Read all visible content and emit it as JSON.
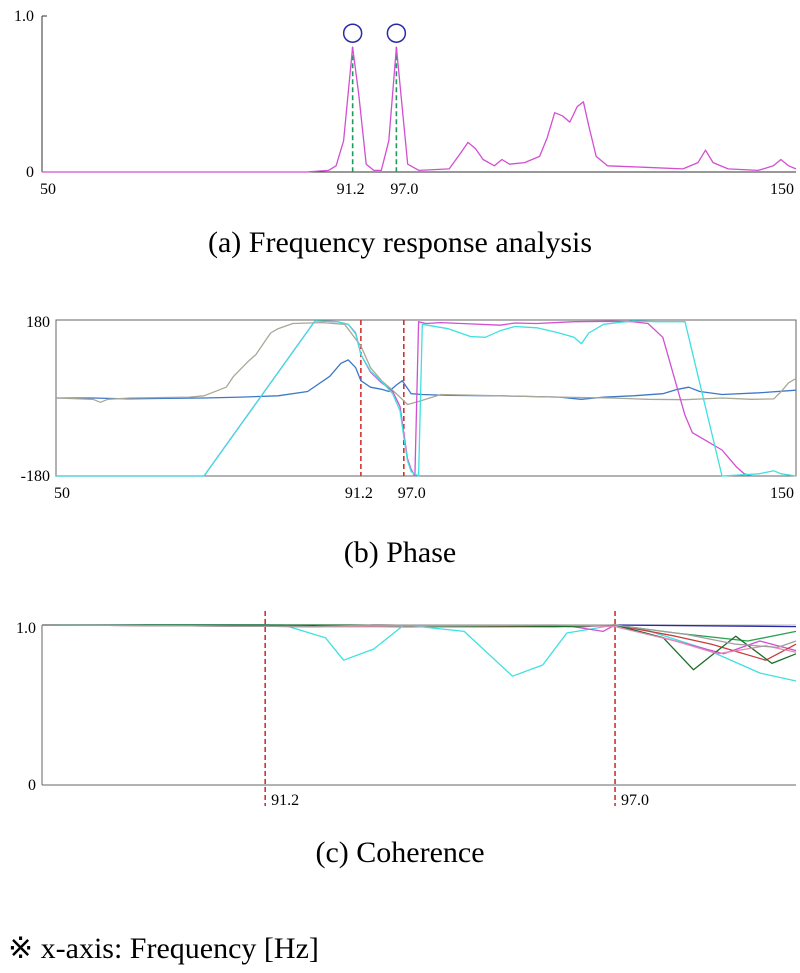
{
  "note": "※ x-axis:  Frequency [Hz]",
  "colors": {
    "magenta": "#d24fd2",
    "blue": "#3d78c8",
    "cyan": "#3ee0e0",
    "olive": "#a8a896",
    "marker_green": "#1e9a5a",
    "marker_red": "#d03232",
    "circle": "#2a2aa8",
    "frame": "#555555"
  },
  "chart_data": [
    {
      "id": "a",
      "type": "line",
      "caption": "(a)  Frequency  response  analysis",
      "xlim": [
        50,
        150
      ],
      "ylim": [
        0,
        1.0
      ],
      "y_tick_labels": [
        "1.0",
        "0"
      ],
      "x_tick_labels": [
        "50",
        "91.2",
        "97.0",
        "150"
      ],
      "markers": [
        91.2,
        97.0
      ],
      "peak_circles": [
        91.2,
        97.0
      ],
      "series": [
        {
          "color": "magenta",
          "points": [
            [
              50,
              0.0
            ],
            [
              85,
              0.0
            ],
            [
              88,
              0.01
            ],
            [
              89,
              0.04
            ],
            [
              90,
              0.2
            ],
            [
              91.2,
              0.8
            ],
            [
              92,
              0.5
            ],
            [
              93,
              0.05
            ],
            [
              94,
              0.01
            ],
            [
              95,
              0.01
            ],
            [
              96,
              0.2
            ],
            [
              97.0,
              0.8
            ],
            [
              97.8,
              0.4
            ],
            [
              98.5,
              0.05
            ],
            [
              100,
              0.01
            ],
            [
              104,
              0.02
            ],
            [
              105.5,
              0.12
            ],
            [
              106.5,
              0.19
            ],
            [
              107.5,
              0.15
            ],
            [
              108.5,
              0.08
            ],
            [
              110,
              0.04
            ],
            [
              111,
              0.08
            ],
            [
              112,
              0.05
            ],
            [
              114,
              0.06
            ],
            [
              116,
              0.1
            ],
            [
              117,
              0.22
            ],
            [
              118,
              0.38
            ],
            [
              119,
              0.36
            ],
            [
              120,
              0.32
            ],
            [
              121,
              0.42
            ],
            [
              121.8,
              0.45
            ],
            [
              122.5,
              0.3
            ],
            [
              123.5,
              0.1
            ],
            [
              125,
              0.04
            ],
            [
              130,
              0.03
            ],
            [
              135,
              0.02
            ],
            [
              137,
              0.06
            ],
            [
              138,
              0.14
            ],
            [
              139,
              0.06
            ],
            [
              141,
              0.02
            ],
            [
              145,
              0.01
            ],
            [
              147,
              0.04
            ],
            [
              148,
              0.08
            ],
            [
              149,
              0.04
            ],
            [
              150,
              0.02
            ]
          ]
        }
      ]
    },
    {
      "id": "b",
      "type": "line",
      "caption": "(b)  Phase",
      "xlim": [
        50,
        150
      ],
      "ylim": [
        -180,
        180
      ],
      "y_tick_labels": [
        "180",
        "-180"
      ],
      "x_tick_labels": [
        "50",
        "91.2",
        "97.0",
        "150"
      ],
      "markers": [
        91.2,
        97.0
      ],
      "series": [
        {
          "color": "blue",
          "points": [
            [
              50,
              0
            ],
            [
              55,
              0
            ],
            [
              60,
              -2
            ],
            [
              65,
              -1
            ],
            [
              70,
              0
            ],
            [
              75,
              2
            ],
            [
              80,
              5
            ],
            [
              84,
              15
            ],
            [
              87,
              50
            ],
            [
              88.5,
              80
            ],
            [
              89.5,
              88
            ],
            [
              90.5,
              70
            ],
            [
              91.2,
              40
            ],
            [
              92.5,
              25
            ],
            [
              94,
              20
            ],
            [
              95,
              15
            ],
            [
              96,
              30
            ],
            [
              96.8,
              40
            ],
            [
              98,
              10
            ],
            [
              99.5,
              8
            ],
            [
              103,
              6
            ],
            [
              110,
              5
            ],
            [
              118,
              2
            ],
            [
              121,
              -3
            ],
            [
              124,
              2
            ],
            [
              128,
              5
            ],
            [
              132,
              10
            ],
            [
              134,
              20
            ],
            [
              135.5,
              25
            ],
            [
              137,
              15
            ],
            [
              140,
              8
            ],
            [
              145,
              12
            ],
            [
              150,
              18
            ]
          ]
        },
        {
          "color": "olive",
          "points": [
            [
              50,
              0
            ],
            [
              55,
              -3
            ],
            [
              56,
              -10
            ],
            [
              57,
              -3
            ],
            [
              60,
              0
            ],
            [
              68,
              2
            ],
            [
              70,
              5
            ],
            [
              73,
              25
            ],
            [
              74,
              50
            ],
            [
              76,
              85
            ],
            [
              77,
              100
            ],
            [
              79,
              150
            ],
            [
              80,
              160
            ],
            [
              82,
              172
            ],
            [
              86,
              174
            ],
            [
              89,
              170
            ],
            [
              91.2,
              120
            ],
            [
              92.5,
              70
            ],
            [
              94,
              40
            ],
            [
              96,
              10
            ],
            [
              97.5,
              -15
            ],
            [
              99,
              -8
            ],
            [
              102,
              8
            ],
            [
              110,
              5
            ],
            [
              118,
              2
            ],
            [
              125,
              0
            ],
            [
              130,
              -3
            ],
            [
              135,
              -4
            ],
            [
              140,
              0
            ],
            [
              144,
              -3
            ],
            [
              147,
              -2
            ],
            [
              148,
              15
            ],
            [
              149,
              35
            ],
            [
              150,
              45
            ]
          ]
        },
        {
          "color": "magenta",
          "points": [
            [
              50,
              -180
            ],
            [
              70,
              -180
            ],
            [
              85,
              178
            ],
            [
              88,
              176
            ],
            [
              89.5,
              170
            ],
            [
              90.5,
              150
            ],
            [
              91.2,
              100
            ],
            [
              92.5,
              60
            ],
            [
              94,
              35
            ],
            [
              95.5,
              15
            ],
            [
              96.5,
              -20
            ],
            [
              97.0,
              -80
            ],
            [
              97.5,
              -140
            ],
            [
              98,
              -165
            ],
            [
              98.5,
              -180
            ],
            [
              99,
              176
            ],
            [
              100,
              172
            ],
            [
              102,
              174
            ],
            [
              106,
              171
            ],
            [
              110,
              168
            ],
            [
              112,
              173
            ],
            [
              115,
              172
            ],
            [
              120,
              176
            ],
            [
              125,
              177
            ],
            [
              128,
              176
            ],
            [
              130,
              172
            ],
            [
              132,
              140
            ],
            [
              133,
              80
            ],
            [
              134,
              20
            ],
            [
              135,
              -40
            ],
            [
              136,
              -80
            ],
            [
              138,
              -100
            ],
            [
              140,
              -120
            ],
            [
              141,
              -140
            ],
            [
              142,
              -160
            ],
            [
              143,
              -175
            ],
            [
              144,
              -180
            ]
          ]
        },
        {
          "color": "cyan",
          "points": [
            [
              50,
              -180
            ],
            [
              70,
              -180
            ],
            [
              85,
              178
            ],
            [
              88,
              176
            ],
            [
              89.5,
              170
            ],
            [
              90.5,
              148
            ],
            [
              91.2,
              100
            ],
            [
              92.5,
              62
            ],
            [
              94,
              38
            ],
            [
              95.5,
              10
            ],
            [
              96.5,
              -30
            ],
            [
              97.0,
              -90
            ],
            [
              97.5,
              -145
            ],
            [
              98,
              -170
            ],
            [
              99,
              -180
            ],
            [
              99.5,
              170
            ],
            [
              103,
              160
            ],
            [
              106,
              142
            ],
            [
              108,
              140
            ],
            [
              110,
              155
            ],
            [
              112,
              165
            ],
            [
              115,
              162
            ],
            [
              118,
              150
            ],
            [
              120,
              140
            ],
            [
              121,
              125
            ],
            [
              122,
              150
            ],
            [
              124,
              170
            ],
            [
              128,
              178
            ],
            [
              131,
              176
            ],
            [
              135,
              176
            ],
            [
              140,
              -180
            ],
            [
              145,
              -175
            ],
            [
              147,
              -168
            ],
            [
              148,
              -175
            ],
            [
              150,
              -180
            ]
          ]
        }
      ]
    },
    {
      "id": "c",
      "type": "line",
      "caption": "(c)  Coherence",
      "xlim": [
        87.5,
        100
      ],
      "ylim": [
        0,
        1.0
      ],
      "y_tick_labels": [
        "1.0",
        "0"
      ],
      "x_tick_labels": [
        "91.2",
        "97.0"
      ],
      "markers": [
        91.2,
        97.0
      ],
      "series": [
        {
          "color": "#2a2aa8",
          "points": [
            [
              87.5,
              1.0
            ],
            [
              91.2,
              1.0
            ],
            [
              93.5,
              0.99
            ],
            [
              96,
              0.99
            ],
            [
              97,
              1.0
            ],
            [
              100,
              0.99
            ]
          ]
        },
        {
          "color": "#2aa050",
          "points": [
            [
              87.5,
              1.0
            ],
            [
              91.2,
              1.0
            ],
            [
              92,
              0.99
            ],
            [
              93,
              0.99
            ],
            [
              94,
              0.99
            ],
            [
              95,
              0.99
            ],
            [
              97,
              1.0
            ],
            [
              98,
              0.95
            ],
            [
              99.2,
              0.9
            ],
            [
              100,
              0.96
            ]
          ]
        },
        {
          "color": "#3ee0e0",
          "points": [
            [
              87.5,
              1.0
            ],
            [
              91.5,
              1.0
            ],
            [
              92.2,
              0.92
            ],
            [
              92.5,
              0.78
            ],
            [
              93,
              0.85
            ],
            [
              93.5,
              1.0
            ],
            [
              94.5,
              0.96
            ],
            [
              95.3,
              0.68
            ],
            [
              95.8,
              0.75
            ],
            [
              96.2,
              0.95
            ],
            [
              97,
              1.0
            ],
            [
              97.5,
              0.97
            ],
            [
              98.5,
              0.85
            ],
            [
              99.4,
              0.7
            ],
            [
              100,
              0.65
            ]
          ]
        },
        {
          "color": "#d24fd2",
          "points": [
            [
              87.5,
              1.0
            ],
            [
              92,
              0.99
            ],
            [
              93,
              1.0
            ],
            [
              96.3,
              0.99
            ],
            [
              96.8,
              0.96
            ],
            [
              97,
              1.0
            ],
            [
              98,
              0.9
            ],
            [
              98.8,
              0.82
            ],
            [
              99.4,
              0.9
            ],
            [
              100,
              0.84
            ]
          ]
        },
        {
          "color": "#c83c3c",
          "points": [
            [
              87.5,
              1.0
            ],
            [
              92,
              0.99
            ],
            [
              93,
              1.0
            ],
            [
              96,
              0.99
            ],
            [
              97,
              1.0
            ],
            [
              98,
              0.93
            ],
            [
              98.6,
              0.88
            ],
            [
              99.5,
              0.78
            ],
            [
              100,
              0.88
            ]
          ]
        },
        {
          "color": "#1a6e2a",
          "points": [
            [
              87.5,
              1.0
            ],
            [
              93,
              1.0
            ],
            [
              96.5,
              0.99
            ],
            [
              97,
              1.0
            ],
            [
              97.8,
              0.92
            ],
            [
              98.3,
              0.72
            ],
            [
              99,
              0.93
            ],
            [
              99.6,
              0.76
            ],
            [
              100,
              0.82
            ]
          ]
        },
        {
          "color": "#e28ab4",
          "points": [
            [
              87.5,
              1.0
            ],
            [
              92,
              0.99
            ],
            [
              96,
              1.0
            ],
            [
              97,
              0.99
            ],
            [
              98,
              0.9
            ],
            [
              98.7,
              0.82
            ],
            [
              99.5,
              0.87
            ],
            [
              100,
              0.83
            ]
          ]
        },
        {
          "color": "#a0a0a0",
          "points": [
            [
              87.5,
              1.0
            ],
            [
              92,
              0.99
            ],
            [
              93,
              1.0
            ],
            [
              97,
              1.0
            ],
            [
              98.2,
              0.94
            ],
            [
              99,
              0.88
            ],
            [
              99.7,
              0.86
            ],
            [
              100,
              0.9
            ]
          ]
        }
      ]
    }
  ]
}
